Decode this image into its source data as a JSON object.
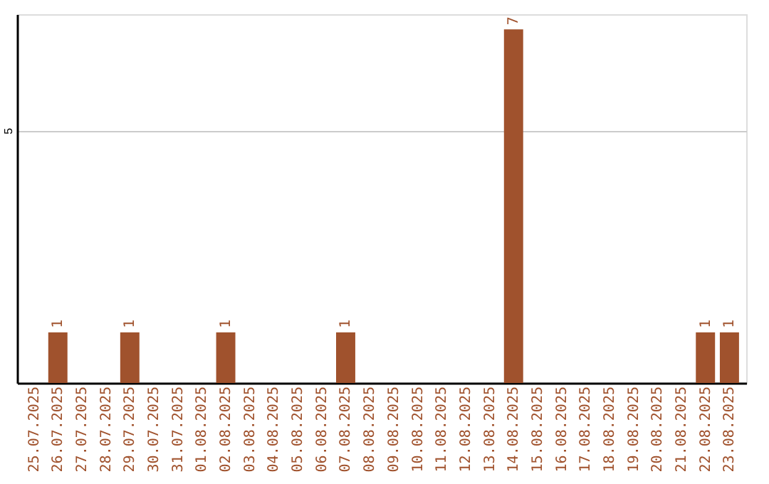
{
  "chart_data": {
    "type": "bar",
    "categories": [
      "25.07.2025",
      "26.07.2025",
      "27.07.2025",
      "28.07.2025",
      "29.07.2025",
      "30.07.2025",
      "31.07.2025",
      "01.08.2025",
      "02.08.2025",
      "03.08.2025",
      "04.08.2025",
      "05.08.2025",
      "06.08.2025",
      "07.08.2025",
      "08.08.2025",
      "09.08.2025",
      "10.08.2025",
      "11.08.2025",
      "12.08.2025",
      "13.08.2025",
      "14.08.2025",
      "15.08.2025",
      "16.08.2025",
      "17.08.2025",
      "18.08.2025",
      "19.08.2025",
      "20.08.2025",
      "21.08.2025",
      "22.08.2025",
      "23.08.2025"
    ],
    "values": [
      0,
      1,
      0,
      0,
      1,
      0,
      0,
      0,
      1,
      0,
      0,
      0,
      0,
      1,
      0,
      0,
      0,
      0,
      0,
      0,
      7,
      0,
      0,
      0,
      0,
      0,
      0,
      0,
      1,
      1
    ],
    "value_labels": [
      null,
      "1",
      null,
      null,
      "1",
      null,
      null,
      null,
      "1",
      null,
      null,
      null,
      null,
      "1",
      null,
      null,
      null,
      null,
      null,
      null,
      "7",
      null,
      null,
      null,
      null,
      null,
      null,
      null,
      "1",
      "1"
    ],
    "color": "#a0522d",
    "ylim": [
      0,
      7.3
    ],
    "yticks": [
      5
    ],
    "grid": "y"
  }
}
